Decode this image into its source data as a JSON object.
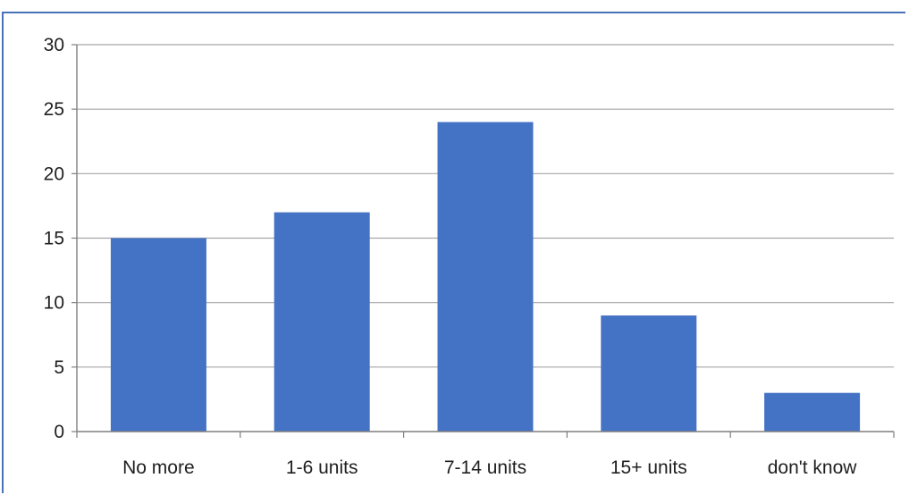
{
  "chart_data": {
    "type": "bar",
    "categories": [
      "No more",
      "1-6 units",
      "7-14 units",
      "15+ units",
      "don't know"
    ],
    "values": [
      15,
      17,
      24,
      9,
      3
    ],
    "title": "",
    "xlabel": "",
    "ylabel": "",
    "ylim": [
      0,
      30
    ],
    "yticks": [
      0,
      5,
      10,
      15,
      20,
      25,
      30
    ],
    "grid": true,
    "legend": "none",
    "bar_color": "#4472c4",
    "grid_color": "#a6a6a6",
    "frame_color": "#4a72b8"
  }
}
